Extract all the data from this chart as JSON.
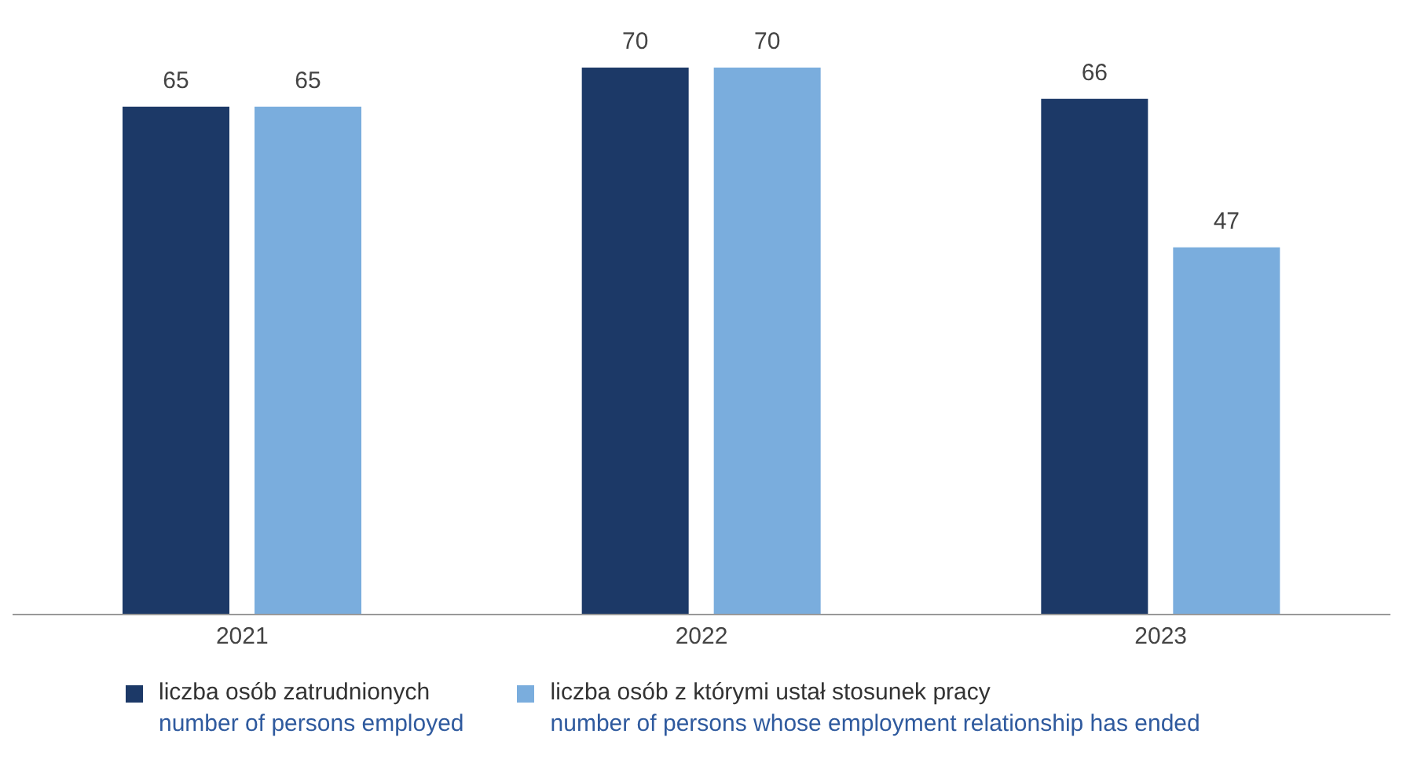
{
  "chart_data": {
    "type": "bar",
    "categories": [
      "2021",
      "2022",
      "2023"
    ],
    "series": [
      {
        "name": "liczba osób zatrudnionych\nnumber of persons employed",
        "color": "#1c3967",
        "values": [
          65,
          70,
          66
        ]
      },
      {
        "name": "liczba osób z którymi ustał stosunek pracy\nnumber of persons whose employment relationship has ended",
        "color": "#7aaddd",
        "values": [
          65,
          70,
          47
        ]
      }
    ],
    "data_labels": true,
    "grid": false,
    "legend": "bottom left"
  }
}
